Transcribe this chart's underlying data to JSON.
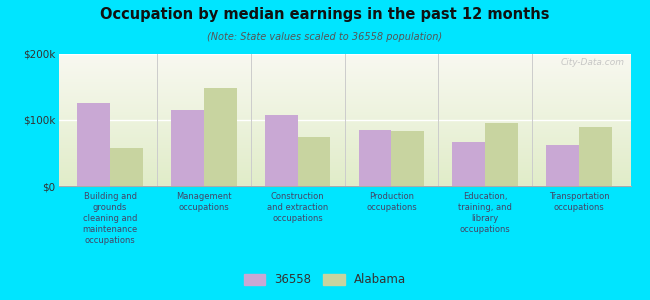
{
  "title": "Occupation by median earnings in the past 12 months",
  "subtitle": "(Note: State values scaled to 36558 population)",
  "categories": [
    "Building and\ngrounds\ncleaning and\nmaintenance\noccupations",
    "Management\noccupations",
    "Construction\nand extraction\noccupations",
    "Production\noccupations",
    "Education,\ntraining, and\nlibrary\noccupations",
    "Transportation\noccupations"
  ],
  "values_36558": [
    125000,
    115000,
    107000,
    85000,
    67000,
    62000
  ],
  "values_alabama": [
    57000,
    148000,
    75000,
    83000,
    95000,
    90000
  ],
  "color_36558": "#c9a8d4",
  "color_alabama": "#c8d4a0",
  "background_color": "#00e5ff",
  "ylim": [
    0,
    200000
  ],
  "ytick_labels": [
    "$0",
    "$100k",
    "$200k"
  ],
  "bar_width": 0.35,
  "watermark": "City-Data.com",
  "legend_label_1": "36558",
  "legend_label_2": "Alabama"
}
